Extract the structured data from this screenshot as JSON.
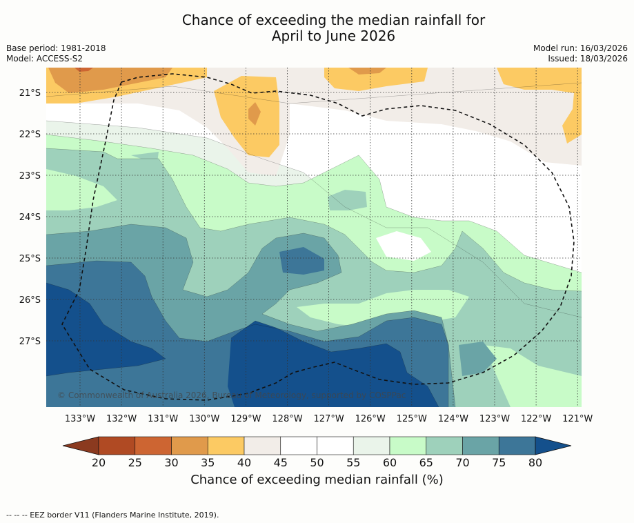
{
  "title": {
    "line1": "Chance of exceeding the median rainfall for",
    "line2": "April to June 2026"
  },
  "meta": {
    "base_period": "Base period: 1981-2018",
    "model": "Model: ACCESS-S2",
    "model_run": "Model run: 16/03/2026",
    "issued": "Issued: 18/03/2026"
  },
  "map": {
    "watermark": "© Commonwealth of Australia 2026, Bureau of Meteorology, supported by COSPPac",
    "lat_labels": [
      "21°S",
      "22°S",
      "23°S",
      "24°S",
      "25°S",
      "26°S",
      "27°S"
    ],
    "lon_labels": [
      "133°W",
      "132°W",
      "131°W",
      "130°W",
      "129°W",
      "128°W",
      "127°W",
      "126°W",
      "125°W",
      "124°W",
      "123°W",
      "122°W",
      "121°W"
    ]
  },
  "colorbar": {
    "tick_labels": [
      "20",
      "25",
      "30",
      "35",
      "40",
      "45",
      "50",
      "55",
      "60",
      "65",
      "70",
      "75",
      "80"
    ],
    "label": "Chance of exceeding median rainfall (%)",
    "colors": {
      "below_20": "#8b3a1f",
      "20_25": "#b04a23",
      "25_30": "#cd6532",
      "30_35": "#e09a4b",
      "35_40": "#fcca63",
      "40_45": "#f2ede8",
      "45_50": "#ffffff",
      "50_55": "#ffffff",
      "55_60": "#eaf4ea",
      "60_65": "#c8fbc8",
      "65_70": "#9ed1bb",
      "70_75": "#6aa4a6",
      "75_80": "#3d7698",
      "above_80": "#14508c"
    }
  },
  "footer": "-- -- -- EEZ border V11 (Flanders Marine Institute, 2019)."
}
